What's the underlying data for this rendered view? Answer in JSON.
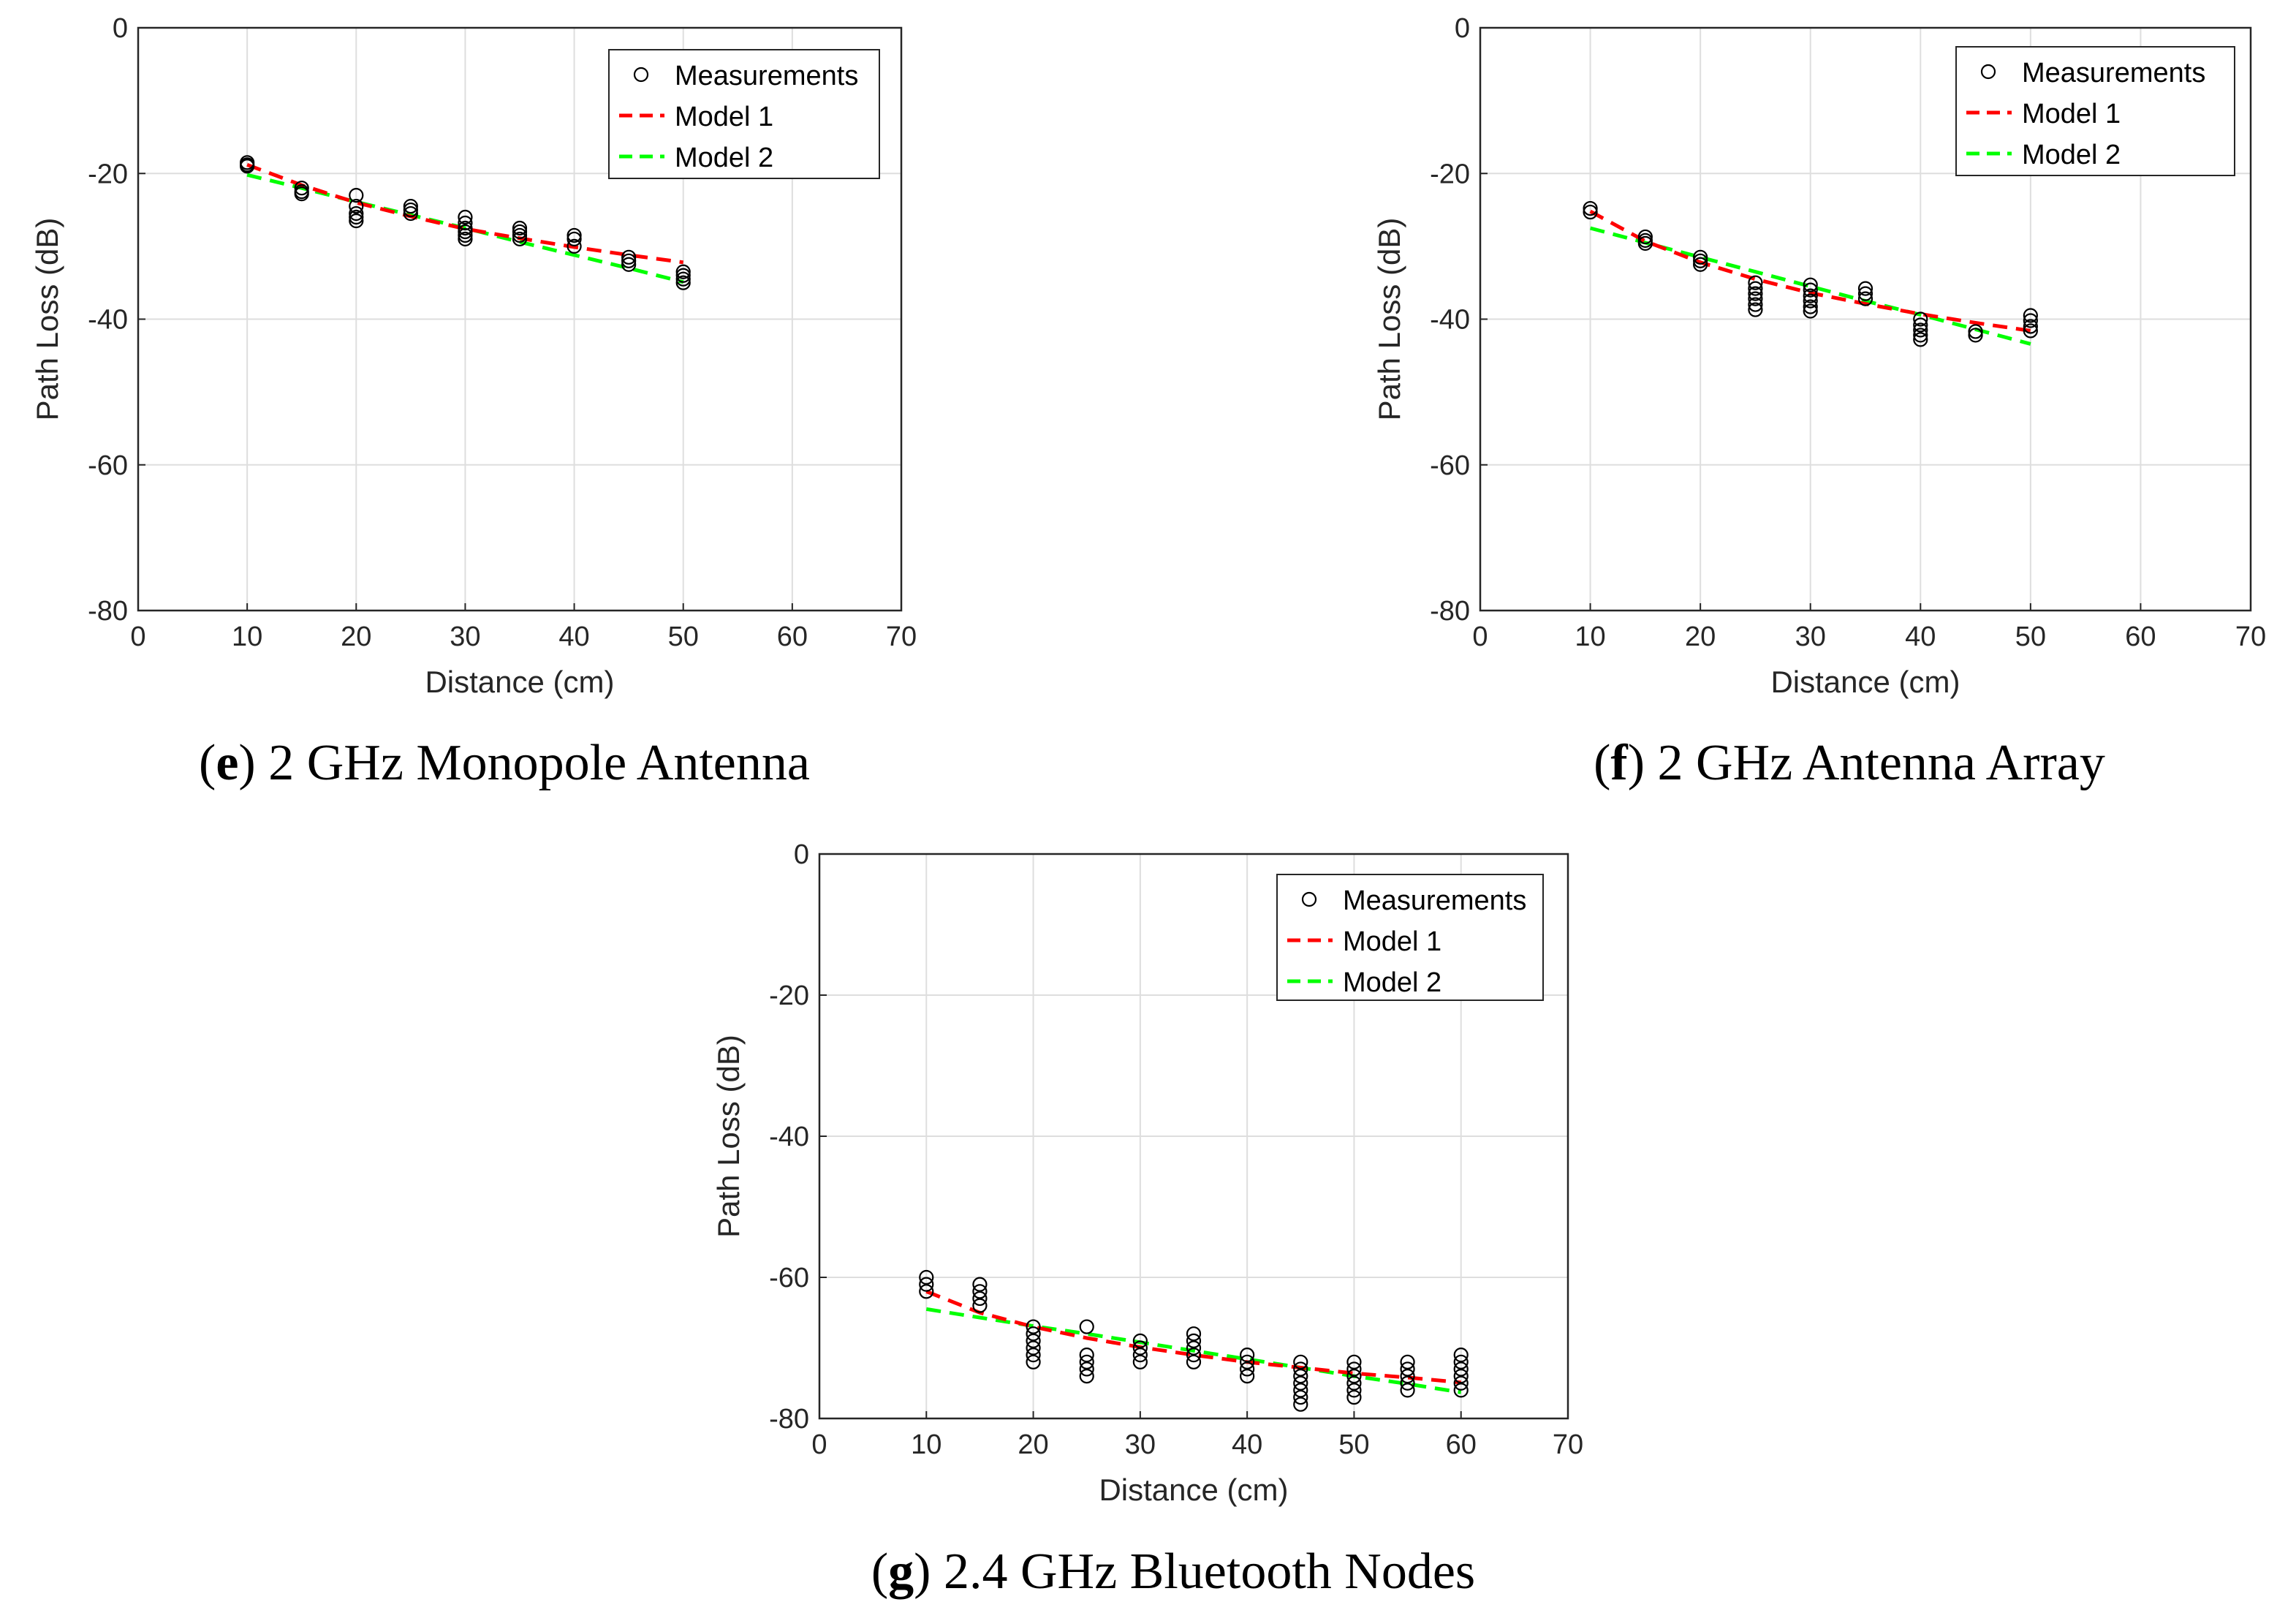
{
  "colors": {
    "model1": "#ff0000",
    "model2": "#00ff00",
    "measurement": "#000000",
    "grid": "#dedede",
    "axis": "#262626"
  },
  "legend": {
    "measurements": "Measurements",
    "model1": "Model 1",
    "model2": "Model 2"
  },
  "chart_data": [
    {
      "type": "scatter",
      "caption_letter": "e",
      "caption_text": "2 GHz Monopole Antenna",
      "xlabel": "Distance (cm)",
      "ylabel": "Path Loss (dB)",
      "xlim": [
        0,
        70
      ],
      "ylim": [
        -80,
        0
      ],
      "xticks": [
        "0",
        "10",
        "20",
        "30",
        "40",
        "50",
        "60",
        "70"
      ],
      "yticks": [
        "0",
        "-20",
        "-40",
        "-60",
        "-80"
      ],
      "grid": true,
      "legend_position": "top-right",
      "measurements": [
        {
          "x": 10,
          "y": [
            -18.5,
            -19.0,
            -18.8
          ]
        },
        {
          "x": 15,
          "y": [
            -22.5,
            -22.0,
            -22.8
          ]
        },
        {
          "x": 20,
          "y": [
            -23.0,
            -24.5,
            -25.5,
            -26.0,
            -26.5
          ]
        },
        {
          "x": 25,
          "y": [
            -24.5,
            -25.0,
            -25.5
          ]
        },
        {
          "x": 30,
          "y": [
            -26.0,
            -26.8,
            -27.5,
            -28.0,
            -28.5,
            -29.0
          ]
        },
        {
          "x": 35,
          "y": [
            -27.5,
            -28.0,
            -28.5,
            -29.0
          ]
        },
        {
          "x": 40,
          "y": [
            -28.5,
            -29.0,
            -30.0
          ]
        },
        {
          "x": 45,
          "y": [
            -31.5,
            -32.0,
            -32.5
          ]
        },
        {
          "x": 50,
          "y": [
            -33.5,
            -34.0,
            -34.5,
            -35.0
          ]
        }
      ],
      "model1": {
        "x": [
          10,
          15,
          20,
          25,
          30,
          35,
          40,
          45,
          50
        ],
        "y": [
          -18.8,
          -21.6,
          -24.0,
          -25.9,
          -27.6,
          -28.9,
          -30.1,
          -31.2,
          -32.2
        ]
      },
      "model2": {
        "x": [
          10,
          15,
          20,
          25,
          30,
          35,
          40,
          45,
          50
        ],
        "y": [
          -20.2,
          -22.0,
          -23.9,
          -25.7,
          -27.5,
          -29.4,
          -31.2,
          -33.0,
          -34.9
        ]
      }
    },
    {
      "type": "scatter",
      "caption_letter": "f",
      "caption_text": "2 GHz Antenna Array",
      "xlabel": "Distance (cm)",
      "ylabel": "Path Loss (dB)",
      "xlim": [
        0,
        70
      ],
      "ylim": [
        -80,
        0
      ],
      "xticks": [
        "0",
        "10",
        "20",
        "30",
        "40",
        "50",
        "60",
        "70"
      ],
      "yticks": [
        "0",
        "-20",
        "-40",
        "-60",
        "-80"
      ],
      "grid": true,
      "legend_position": "top-right",
      "measurements": [
        {
          "x": 10,
          "y": [
            -24.8,
            -25.3
          ]
        },
        {
          "x": 15,
          "y": [
            -28.7,
            -29.2,
            -29.6
          ]
        },
        {
          "x": 20,
          "y": [
            -31.5,
            -32.0,
            -32.5
          ]
        },
        {
          "x": 25,
          "y": [
            -35.0,
            -35.8,
            -36.5,
            -37.2,
            -38.0,
            -38.7
          ]
        },
        {
          "x": 30,
          "y": [
            -35.3,
            -36.0,
            -36.8,
            -37.5,
            -38.3,
            -38.9
          ]
        },
        {
          "x": 35,
          "y": [
            -35.8,
            -36.5,
            -37.2
          ]
        },
        {
          "x": 40,
          "y": [
            -40.0,
            -40.8,
            -41.5,
            -42.2,
            -42.8
          ]
        },
        {
          "x": 45,
          "y": [
            -41.7,
            -42.2
          ]
        },
        {
          "x": 50,
          "y": [
            -39.5,
            -40.2,
            -41.0,
            -41.6
          ]
        }
      ],
      "model1": {
        "x": [
          10,
          15,
          20,
          25,
          30,
          35,
          40,
          45,
          50
        ],
        "y": [
          -25.2,
          -29.3,
          -32.2,
          -34.5,
          -36.4,
          -37.9,
          -39.3,
          -40.5,
          -41.6
        ]
      },
      "model2": {
        "x": [
          10,
          15,
          20,
          25,
          30,
          35,
          40,
          45,
          50
        ],
        "y": [
          -27.5,
          -29.5,
          -31.5,
          -33.5,
          -35.5,
          -37.5,
          -39.4,
          -41.4,
          -43.4
        ]
      }
    },
    {
      "type": "scatter",
      "caption_letter": "g",
      "caption_text": "2.4 GHz Bluetooth Nodes",
      "xlabel": "Distance (cm)",
      "ylabel": "Path Loss (dB)",
      "xlim": [
        0,
        70
      ],
      "ylim": [
        -80,
        0
      ],
      "xticks": [
        "0",
        "10",
        "20",
        "30",
        "40",
        "50",
        "60",
        "70"
      ],
      "yticks": [
        "0",
        "-20",
        "-40",
        "-60",
        "-80"
      ],
      "grid": true,
      "legend_position": "top-right",
      "measurements": [
        {
          "x": 10,
          "y": [
            -60.0,
            -61.0,
            -62.0
          ]
        },
        {
          "x": 15,
          "y": [
            -61.0,
            -62.0,
            -63.0,
            -64.0
          ]
        },
        {
          "x": 20,
          "y": [
            -67.0,
            -68.0,
            -69.0,
            -70.0,
            -71.0,
            -72.0
          ]
        },
        {
          "x": 25,
          "y": [
            -67.0,
            -71.0,
            -72.0,
            -73.0,
            -74.0
          ]
        },
        {
          "x": 30,
          "y": [
            -69.0,
            -70.0,
            -71.0,
            -72.0
          ]
        },
        {
          "x": 35,
          "y": [
            -68.0,
            -69.0,
            -70.0,
            -71.0,
            -72.0
          ]
        },
        {
          "x": 40,
          "y": [
            -71.0,
            -72.0,
            -73.0,
            -74.0
          ]
        },
        {
          "x": 45,
          "y": [
            -72.0,
            -73.0,
            -74.0,
            -75.0,
            -76.0,
            -77.0,
            -78.0
          ]
        },
        {
          "x": 50,
          "y": [
            -72.0,
            -73.0,
            -74.0,
            -75.0,
            -76.0,
            -77.0
          ]
        },
        {
          "x": 55,
          "y": [
            -72.0,
            -73.0,
            -74.0,
            -75.0,
            -76.0
          ]
        },
        {
          "x": 60,
          "y": [
            -71.0,
            -72.0,
            -73.0,
            -74.0,
            -75.0,
            -76.0
          ]
        }
      ],
      "model1": {
        "x": [
          10,
          15,
          20,
          25,
          30,
          35,
          40,
          45,
          50,
          55,
          60
        ],
        "y": [
          -62.0,
          -65.0,
          -67.0,
          -68.6,
          -69.9,
          -71.0,
          -72.0,
          -72.8,
          -73.6,
          -74.2,
          -74.9
        ]
      },
      "model2": {
        "x": [
          10,
          15,
          20,
          25,
          30,
          35,
          40,
          45,
          50,
          55,
          60
        ],
        "y": [
          -64.5,
          -65.7,
          -66.9,
          -68.0,
          -69.2,
          -70.4,
          -71.6,
          -72.8,
          -74.0,
          -75.1,
          -76.3
        ]
      }
    }
  ]
}
